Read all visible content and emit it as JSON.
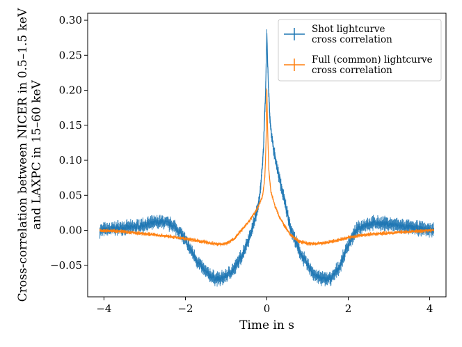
{
  "chart_data": {
    "type": "line",
    "title": "",
    "xlabel": "Time in s",
    "ylabel_lines": [
      "Cross-correlation between NICER in 0.5–1.5 keV",
      "and LAXPC in 15–60 keV"
    ],
    "xlim": [
      -4.4,
      4.4
    ],
    "ylim": [
      -0.095,
      0.31
    ],
    "xticks": [
      -4,
      -2,
      0,
      2,
      4
    ],
    "xtick_labels": [
      "−4",
      "−2",
      "0",
      "2",
      "4"
    ],
    "yticks": [
      -0.05,
      0.0,
      0.05,
      0.1,
      0.15,
      0.2,
      0.25,
      0.3
    ],
    "ytick_labels": [
      "−0.05",
      "0.00",
      "0.05",
      "0.10",
      "0.15",
      "0.20",
      "0.25",
      "0.30"
    ],
    "grid": false,
    "legend_position": "top-right",
    "error_bars": true,
    "series": [
      {
        "name_lines": [
          "Shot lightcurve",
          "cross correlation"
        ],
        "color": "#1f77b4",
        "x": [
          -4.1,
          -3.9,
          -3.6,
          -3.3,
          -3.0,
          -2.8,
          -2.6,
          -2.5,
          -2.3,
          -2.1,
          -1.9,
          -1.7,
          -1.5,
          -1.3,
          -1.15,
          -1.0,
          -0.8,
          -0.6,
          -0.4,
          -0.25,
          -0.15,
          -0.08,
          -0.03,
          0.0,
          0.03,
          0.08,
          0.15,
          0.25,
          0.4,
          0.6,
          0.8,
          1.0,
          1.2,
          1.4,
          1.6,
          1.8,
          2.0,
          2.2,
          2.4,
          2.6,
          2.8,
          3.1,
          3.4,
          3.7,
          4.0,
          4.1
        ],
        "y": [
          0.0,
          0.001,
          0.004,
          0.004,
          0.008,
          0.01,
          0.012,
          0.011,
          0.007,
          -0.005,
          -0.025,
          -0.045,
          -0.06,
          -0.068,
          -0.07,
          -0.065,
          -0.055,
          -0.035,
          -0.005,
          0.025,
          0.06,
          0.12,
          0.2,
          0.28,
          0.22,
          0.155,
          0.12,
          0.09,
          0.05,
          0.0,
          -0.03,
          -0.05,
          -0.065,
          -0.07,
          -0.068,
          -0.05,
          -0.02,
          0.0,
          0.008,
          0.01,
          0.01,
          0.008,
          0.005,
          0.003,
          0.001,
          0.0
        ],
        "error": 0.006
      },
      {
        "name_lines": [
          "Full (common) lightcurve",
          "cross correlation"
        ],
        "color": "#ff7f0e",
        "x": [
          -4.1,
          -3.5,
          -3.0,
          -2.5,
          -2.0,
          -1.7,
          -1.4,
          -1.2,
          -1.0,
          -0.8,
          -0.6,
          -0.45,
          -0.3,
          -0.2,
          -0.1,
          -0.05,
          -0.02,
          0.0,
          0.02,
          0.05,
          0.1,
          0.2,
          0.3,
          0.45,
          0.6,
          0.8,
          1.0,
          1.2,
          1.4,
          1.6,
          1.8,
          2.0,
          2.5,
          3.0,
          3.5,
          4.1
        ],
        "y": [
          0.0,
          -0.002,
          -0.005,
          -0.008,
          -0.012,
          -0.015,
          -0.018,
          -0.02,
          -0.019,
          -0.012,
          0.002,
          0.012,
          0.025,
          0.035,
          0.05,
          0.075,
          0.12,
          0.2,
          0.14,
          0.085,
          0.055,
          0.035,
          0.02,
          0.005,
          -0.008,
          -0.016,
          -0.019,
          -0.019,
          -0.018,
          -0.016,
          -0.013,
          -0.01,
          -0.006,
          -0.004,
          -0.002,
          0.0
        ],
        "error": 0.002
      }
    ]
  }
}
